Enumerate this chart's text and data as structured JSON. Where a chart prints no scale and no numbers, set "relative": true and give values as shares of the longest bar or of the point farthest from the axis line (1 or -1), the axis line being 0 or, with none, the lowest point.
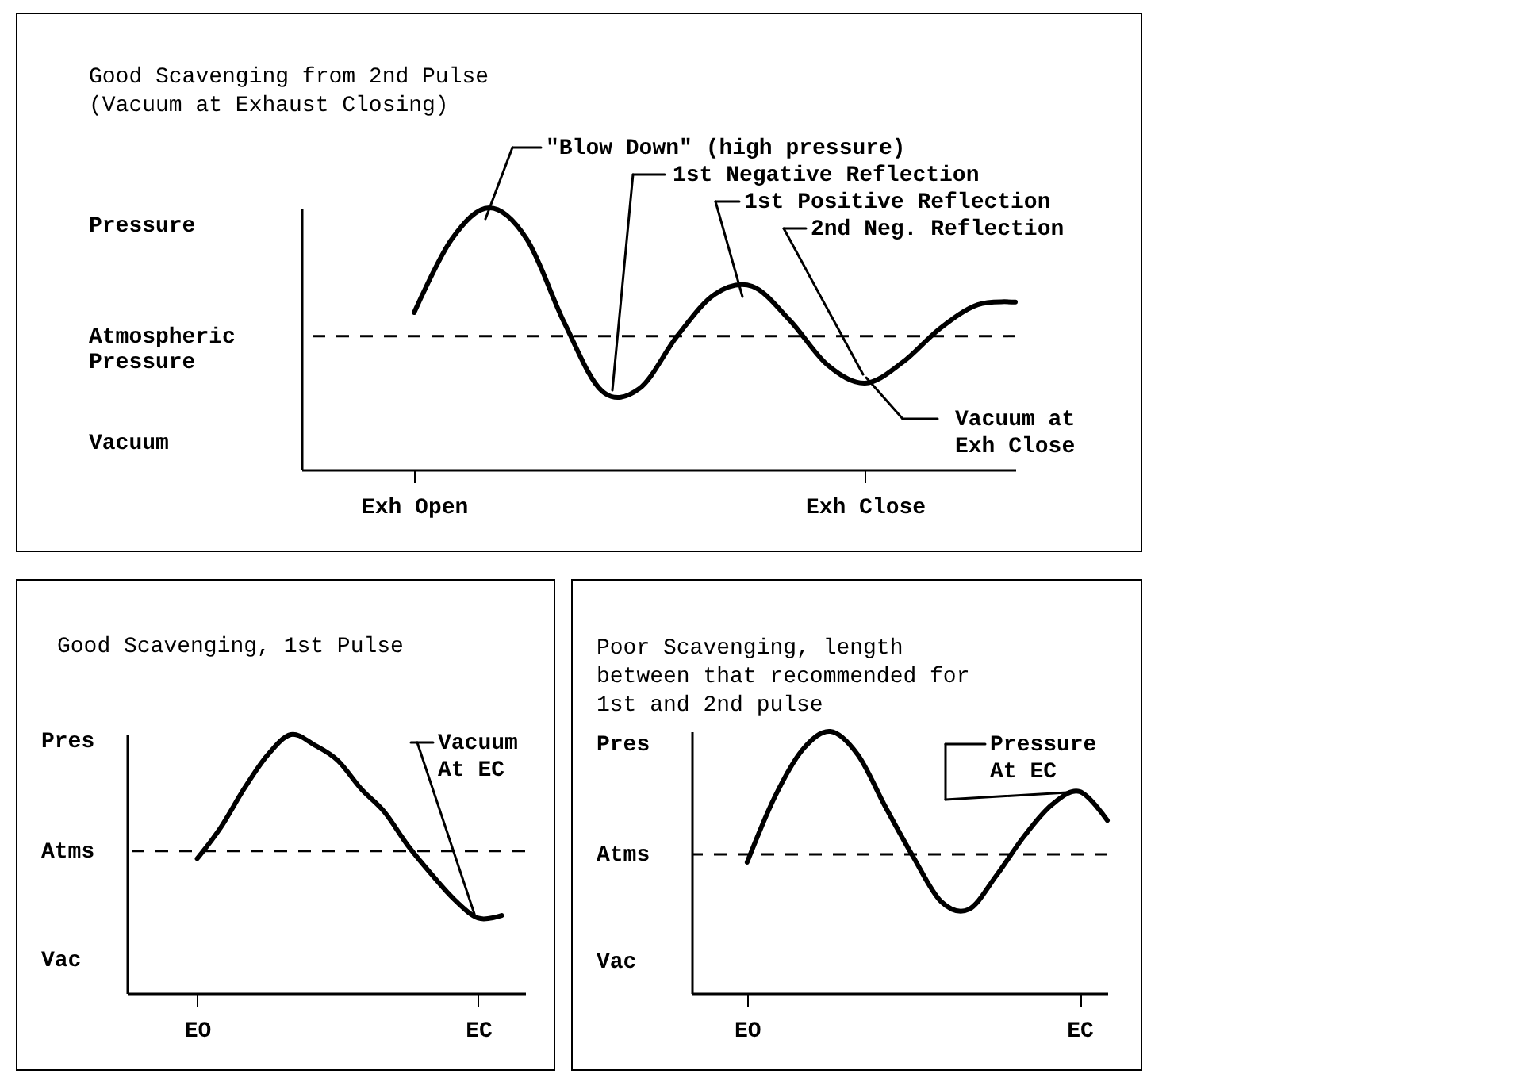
{
  "chart_data": [
    {
      "type": "line",
      "title": "Good Scavenging from 2nd Pulse\n(Vacuum at Exhaust Closing)",
      "relative": true,
      "categories": [
        null,
        null,
        null,
        "Exh Open",
        null,
        null,
        null,
        null,
        null,
        null,
        null,
        null,
        null,
        null,
        null,
        "Exh Close",
        null,
        null,
        null,
        null
      ],
      "series": [
        {
          "color": "#000000",
          "values": [
            null,
            null,
            null,
            0.6,
            0.88,
            1.0,
            0.88,
            0.56,
            0.3,
            0.31,
            0.51,
            0.67,
            0.7,
            0.57,
            0.4,
            0.33,
            0.41,
            0.54,
            0.63,
            0.64
          ]
        }
      ],
      "ref_lines": [
        {
          "axis": "y",
          "value": 0.51,
          "label": "Atmospheric\nPressure",
          "color": "#000000",
          "line_style": "dashed"
        }
      ],
      "annotations": [
        "Pressure",
        "Vacuum",
        "\"Blow Down\" (high pressure)",
        "1st Negative Reflection",
        "1st Positive Reflection",
        "2nd Neg. Reflection",
        "Vacuum at\nExh Close"
      ]
    },
    {
      "type": "line",
      "title": "Good Scavenging, 1st Pulse",
      "relative": true,
      "categories": [
        null,
        null,
        null,
        "EO",
        null,
        null,
        null,
        null,
        null,
        null,
        null,
        null,
        null,
        null,
        null,
        "EC",
        null,
        null
      ],
      "series": [
        {
          "color": "#000000",
          "values": [
            null,
            null,
            null,
            0.52,
            0.64,
            0.79,
            0.92,
            1.0,
            0.96,
            0.9,
            0.79,
            0.7,
            0.57,
            0.46,
            0.36,
            0.29,
            0.3,
            null
          ]
        }
      ],
      "ref_lines": [
        {
          "axis": "y",
          "value": 0.55,
          "label": "Atms",
          "color": "#000000",
          "line_style": "dashed"
        }
      ],
      "annotations": [
        "Pres",
        "Vac",
        "Vacuum\nAt EC"
      ]
    },
    {
      "type": "line",
      "title": "Poor Scavenging, length\nbetween that recommended for\n1st and 2nd pulse",
      "relative": true,
      "categories": [
        null,
        null,
        "EO",
        null,
        null,
        null,
        null,
        null,
        null,
        null,
        null,
        null,
        null,
        null,
        "EC",
        null
      ],
      "series": [
        {
          "color": "#000000",
          "values": [
            null,
            null,
            0.5,
            0.75,
            0.93,
            1.0,
            0.91,
            0.71,
            0.52,
            0.35,
            0.32,
            0.45,
            0.6,
            0.72,
            0.77,
            0.66
          ]
        }
      ],
      "ref_lines": [
        {
          "axis": "y",
          "value": 0.53,
          "label": "Atms",
          "color": "#000000",
          "line_style": "dashed"
        }
      ],
      "annotations": [
        "Pres",
        "Vac",
        "Pressure\nAt EC"
      ]
    }
  ]
}
